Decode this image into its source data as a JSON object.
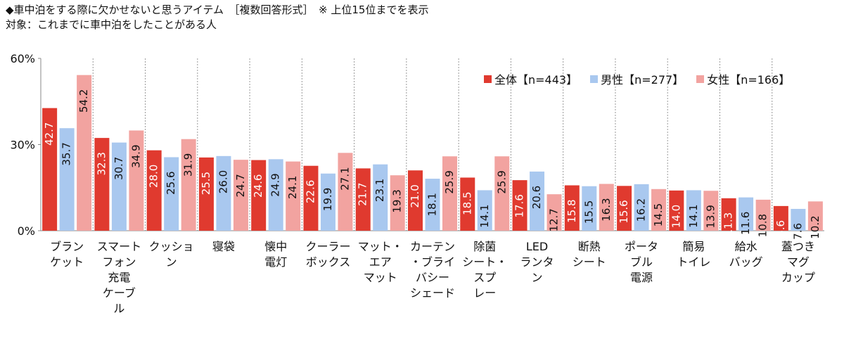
{
  "header": {
    "line1": "◆車中泊をする際に欠かせないと思うアイテム　［複数回答形式］　※ 上位15位までを表示",
    "line2": "対象：これまでに車中泊をしたことがある人"
  },
  "chart_data": {
    "type": "bar",
    "y_ticks": [
      "0%",
      "30%",
      "60%"
    ],
    "ylim": [
      0,
      60
    ],
    "grid": false,
    "legend_position": "top-right",
    "categories": [
      "ブラン|ケット",
      "スマート|フォン|充電|ケーブ|ル",
      "クッショ|ン",
      "寝袋",
      "懐中|電灯",
      "クーラー|ボックス",
      "マット・|エア|マット",
      "カーテン|・ブライ|バシー|シェード",
      "除菌|シート・|スプ|レー",
      "LED|ランタ|ン",
      "断熱|シート",
      "ポータ|ブル|電源",
      "簡易|トイレ",
      "給水|バッグ",
      "蓋つき|マグ|カップ"
    ],
    "series": [
      {
        "name": "全体【n=443】",
        "color": "#e03a2f",
        "label_color": "#ffffff",
        "values": [
          42.7,
          32.3,
          28.0,
          25.5,
          24.6,
          22.6,
          21.7,
          21.0,
          18.5,
          17.6,
          15.8,
          15.6,
          14.0,
          11.3,
          8.6
        ]
      },
      {
        "name": "男性【n=277】",
        "color": "#a9c8ef",
        "label_color": "#111111",
        "values": [
          35.7,
          30.7,
          25.6,
          26.0,
          24.9,
          19.9,
          23.1,
          18.1,
          14.1,
          20.6,
          15.5,
          16.2,
          14.1,
          11.6,
          7.6
        ]
      },
      {
        "name": "女性【n=166】",
        "color": "#f2a3a0",
        "label_color": "#111111",
        "values": [
          54.2,
          34.9,
          31.9,
          24.7,
          24.1,
          27.1,
          19.3,
          25.9,
          25.9,
          12.7,
          16.3,
          14.5,
          13.9,
          10.8,
          10.2
        ]
      }
    ]
  }
}
